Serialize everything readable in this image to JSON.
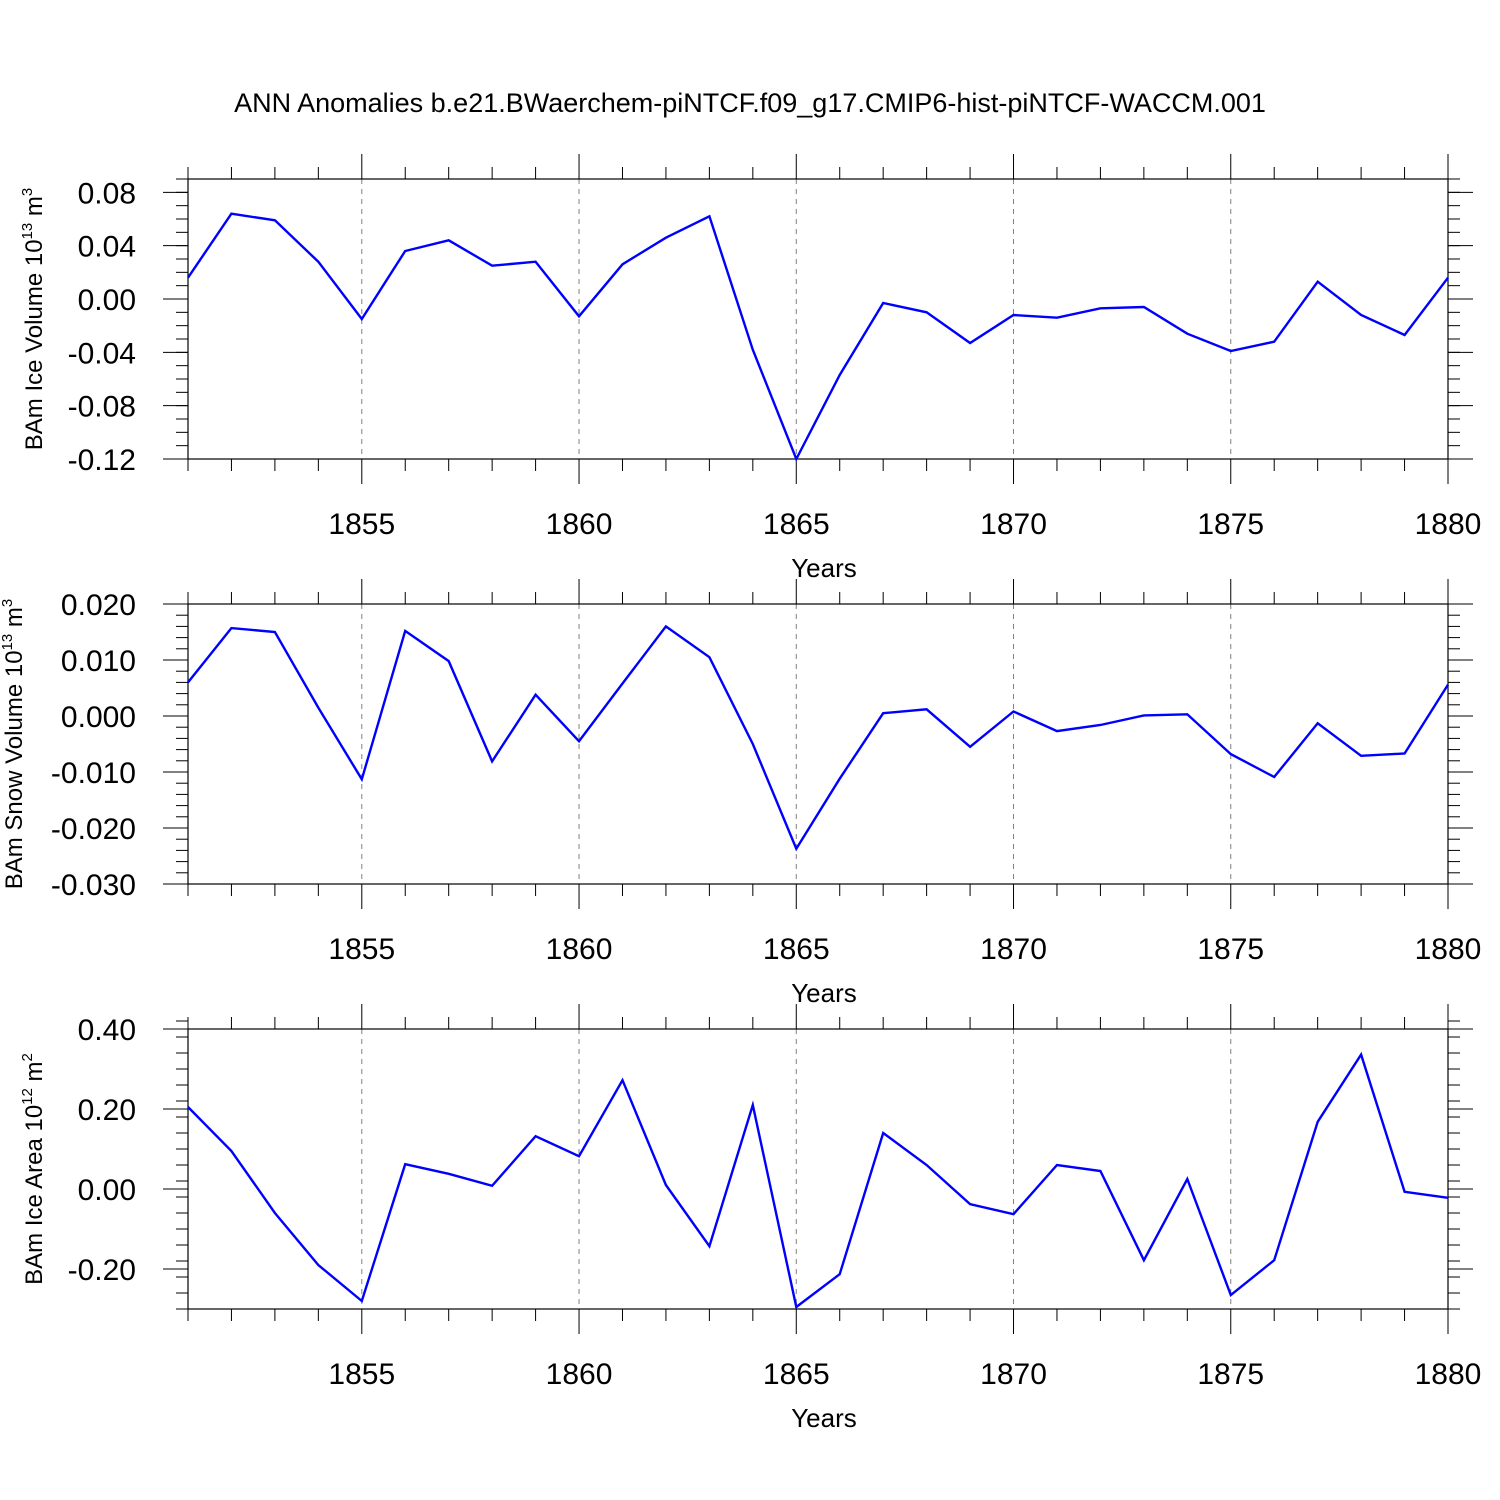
{
  "title": "ANN Anomalies b.e21.BWaerchem-piNTCF.f09_g17.CMIP6-hist-piNTCF-WACCM.001",
  "style": {
    "line_color": "#0000ff",
    "axis_color": "#000000",
    "grid_color": "#808080",
    "background": "#ffffff"
  },
  "chart_data": [
    {
      "type": "line",
      "xlabel": "Years",
      "ylabel": "BAm Ice Volume 10",
      "ylabel_sup": "13",
      "ylabel_unit": " m",
      "ylabel_unit_sup": "3",
      "xlim": [
        1851,
        1880
      ],
      "ylim": [
        -0.12,
        0.09
      ],
      "x_ticks": [
        1855,
        1860,
        1865,
        1870,
        1875,
        1880
      ],
      "y_ticks": [
        -0.12,
        -0.08,
        -0.04,
        0.0,
        0.04,
        0.08
      ],
      "y_tick_labels": [
        "-0.12",
        "-0.08",
        "-0.04",
        "0.00",
        "0.04",
        "0.08"
      ],
      "y_minor_step": 0.01,
      "grid": "dashed vertical lines at major x ticks",
      "x": [
        1851,
        1852,
        1853,
        1854,
        1855,
        1856,
        1857,
        1858,
        1859,
        1860,
        1861,
        1862,
        1863,
        1864,
        1865,
        1866,
        1867,
        1868,
        1869,
        1870,
        1871,
        1872,
        1873,
        1874,
        1875,
        1876,
        1877,
        1878,
        1879,
        1880
      ],
      "series": [
        {
          "values": [
            0.016,
            0.064,
            0.059,
            0.028,
            -0.015,
            0.036,
            0.044,
            0.025,
            0.028,
            -0.013,
            0.026,
            0.046,
            0.062,
            -0.038,
            -0.12,
            -0.057,
            -0.003,
            -0.01,
            -0.033,
            -0.012,
            -0.014,
            -0.007,
            -0.006,
            -0.026,
            -0.039,
            -0.032,
            0.013,
            -0.012,
            -0.027,
            0.016
          ]
        }
      ]
    },
    {
      "type": "line",
      "xlabel": "Years",
      "ylabel": "BAm Snow Volume 10",
      "ylabel_sup": "13",
      "ylabel_unit": " m",
      "ylabel_unit_sup": "3",
      "xlim": [
        1851,
        1880
      ],
      "ylim": [
        -0.03,
        0.02
      ],
      "x_ticks": [
        1855,
        1860,
        1865,
        1870,
        1875,
        1880
      ],
      "y_ticks": [
        -0.03,
        -0.02,
        -0.01,
        0.0,
        0.01,
        0.02
      ],
      "y_tick_labels": [
        "-0.030",
        "-0.020",
        "-0.010",
        "0.000",
        "0.010",
        "0.020"
      ],
      "y_minor_step": 0.002,
      "grid": "dashed vertical lines at major x ticks",
      "x": [
        1851,
        1852,
        1853,
        1854,
        1855,
        1856,
        1857,
        1858,
        1859,
        1860,
        1861,
        1862,
        1863,
        1864,
        1865,
        1866,
        1867,
        1868,
        1869,
        1870,
        1871,
        1872,
        1873,
        1874,
        1875,
        1876,
        1877,
        1878,
        1879,
        1880
      ],
      "series": [
        {
          "values": [
            0.006,
            0.0157,
            0.015,
            0.0015,
            -0.0113,
            0.0152,
            0.0098,
            -0.0081,
            0.0038,
            -0.0045,
            0.0058,
            0.016,
            0.0105,
            -0.005,
            -0.0237,
            -0.0112,
            0.0005,
            0.0012,
            -0.0055,
            0.0008,
            -0.0027,
            -0.0016,
            0.0001,
            0.0003,
            -0.0068,
            -0.0109,
            -0.0013,
            -0.0071,
            -0.0067,
            0.0056
          ]
        }
      ]
    },
    {
      "type": "line",
      "xlabel": "Years",
      "ylabel": "BAm Ice Area 10",
      "ylabel_sup": "12",
      "ylabel_unit": " m",
      "ylabel_unit_sup": "2",
      "xlim": [
        1851,
        1880
      ],
      "ylim": [
        -0.3,
        0.4
      ],
      "x_ticks": [
        1855,
        1860,
        1865,
        1870,
        1875,
        1880
      ],
      "y_ticks": [
        -0.2,
        0.0,
        0.2,
        0.4
      ],
      "y_tick_labels": [
        "-0.20",
        "0.00",
        "0.20",
        "0.40"
      ],
      "y_minor_step": 0.04,
      "grid": "dashed vertical lines at major x ticks",
      "x": [
        1851,
        1852,
        1853,
        1854,
        1855,
        1856,
        1857,
        1858,
        1859,
        1860,
        1861,
        1862,
        1863,
        1864,
        1865,
        1866,
        1867,
        1868,
        1869,
        1870,
        1871,
        1872,
        1873,
        1874,
        1875,
        1876,
        1877,
        1878,
        1879,
        1880
      ],
      "series": [
        {
          "values": [
            0.205,
            0.095,
            -0.06,
            -0.19,
            -0.28,
            0.062,
            0.038,
            0.008,
            0.132,
            0.082,
            0.272,
            0.01,
            -0.143,
            0.21,
            -0.295,
            -0.213,
            0.14,
            0.06,
            -0.038,
            -0.063,
            0.06,
            0.045,
            -0.178,
            0.025,
            -0.265,
            -0.178,
            0.168,
            0.336,
            -0.007,
            -0.022
          ]
        }
      ]
    }
  ]
}
